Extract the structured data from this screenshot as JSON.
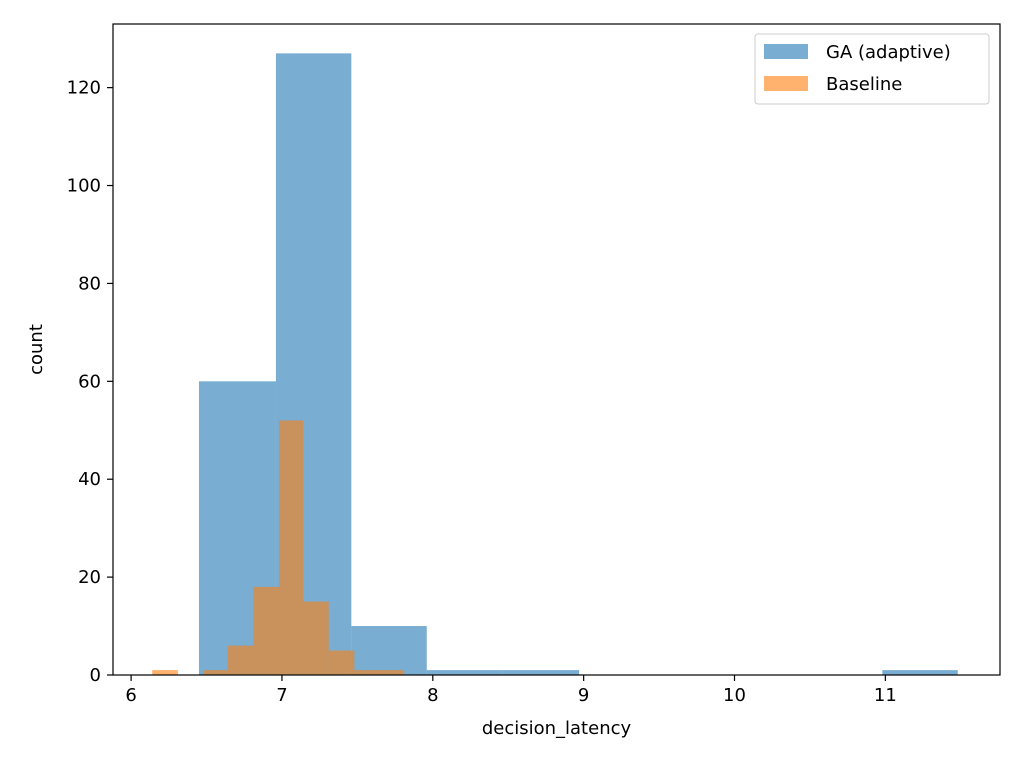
{
  "chart_data": {
    "type": "histogram",
    "title": "",
    "xlabel": "decision_latency",
    "ylabel": "count",
    "xlim": [
      5.88,
      11.76
    ],
    "ylim": [
      0,
      133
    ],
    "xticks": [
      6,
      7,
      8,
      9,
      10,
      11
    ],
    "yticks": [
      0,
      20,
      40,
      60,
      80,
      100,
      120
    ],
    "grid": false,
    "legend_position": "upper right",
    "series": [
      {
        "name": "GA (adaptive)",
        "color": "#1f77b4",
        "alpha": 0.6,
        "bins": [
          {
            "x0": 6.45,
            "x1": 6.96,
            "count": 60
          },
          {
            "x0": 6.96,
            "x1": 7.46,
            "count": 127
          },
          {
            "x0": 7.46,
            "x1": 7.96,
            "count": 10
          },
          {
            "x0": 7.96,
            "x1": 8.46,
            "count": 1
          },
          {
            "x0": 8.46,
            "x1": 8.97,
            "count": 1
          },
          {
            "x0": 8.97,
            "x1": 9.47,
            "count": 0
          },
          {
            "x0": 9.47,
            "x1": 9.97,
            "count": 0
          },
          {
            "x0": 9.97,
            "x1": 10.47,
            "count": 0
          },
          {
            "x0": 10.47,
            "x1": 10.98,
            "count": 0
          },
          {
            "x0": 10.98,
            "x1": 11.48,
            "count": 1
          }
        ]
      },
      {
        "name": "Baseline",
        "color": "#ff7f0e",
        "alpha": 0.6,
        "bins": [
          {
            "x0": 6.14,
            "x1": 6.31,
            "count": 1
          },
          {
            "x0": 6.31,
            "x1": 6.48,
            "count": 0
          },
          {
            "x0": 6.48,
            "x1": 6.64,
            "count": 1
          },
          {
            "x0": 6.64,
            "x1": 6.81,
            "count": 6
          },
          {
            "x0": 6.81,
            "x1": 6.98,
            "count": 18
          },
          {
            "x0": 6.98,
            "x1": 7.14,
            "count": 52
          },
          {
            "x0": 7.14,
            "x1": 7.31,
            "count": 15
          },
          {
            "x0": 7.31,
            "x1": 7.48,
            "count": 5
          },
          {
            "x0": 7.48,
            "x1": 7.64,
            "count": 1
          },
          {
            "x0": 7.64,
            "x1": 7.81,
            "count": 1
          }
        ]
      }
    ]
  }
}
